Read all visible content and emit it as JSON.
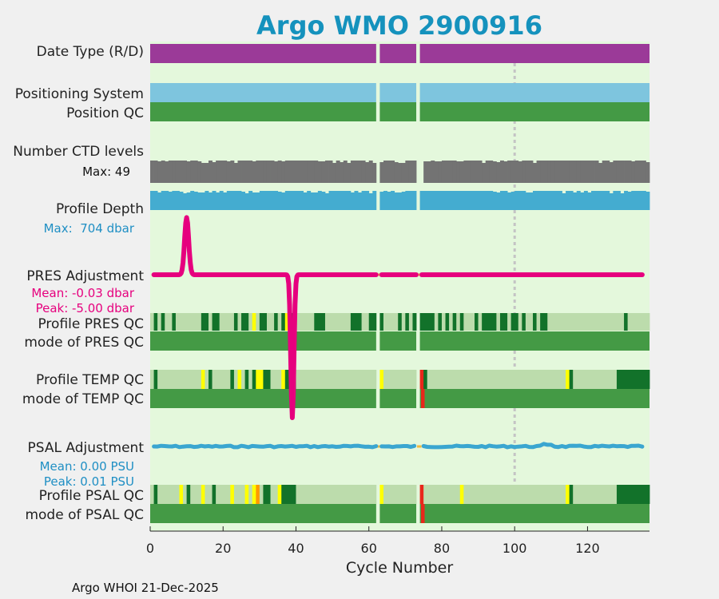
{
  "chart_data": {
    "type": "timeline",
    "title": "Argo WMO 2900916",
    "xlabel": "Cycle Number",
    "xlim": [
      0,
      137
    ],
    "xticks": [
      0,
      20,
      40,
      60,
      80,
      100,
      120
    ],
    "reference_cycle": 100,
    "gaps": [
      [
        62,
        63
      ],
      [
        73,
        74
      ]
    ],
    "ctd_gap": [
      74,
      75
    ],
    "rows": [
      {
        "key": "date_type",
        "label": "Date Type (R/D)"
      },
      {
        "key": "positioning_system",
        "label": "Positioning System"
      },
      {
        "key": "position_qc",
        "label": "Position QC"
      },
      {
        "key": "ctd_levels",
        "label": "Number CTD levels",
        "note": "Max: 49"
      },
      {
        "key": "profile_depth",
        "label": "Profile Depth",
        "note": "Max:  704 dbar"
      },
      {
        "key": "pres_adjustment",
        "label": "PRES Adjustment",
        "notes": [
          "Mean: -0.03 dbar",
          "Peak: -5.00 dbar"
        ]
      },
      {
        "key": "profile_pres_qc",
        "label": "Profile PRES QC"
      },
      {
        "key": "mode_pres_qc",
        "label": "mode of PRES QC"
      },
      {
        "key": "profile_temp_qc",
        "label": "Profile TEMP QC"
      },
      {
        "key": "mode_temp_qc",
        "label": "mode of TEMP QC"
      },
      {
        "key": "psal_adjustment",
        "label": "PSAL Adjustment",
        "notes": [
          "Mean: 0.00 PSU",
          "Peak: 0.01 PSU"
        ]
      },
      {
        "key": "profile_psal_qc",
        "label": "Profile PSAL QC"
      },
      {
        "key": "mode_psal_qc",
        "label": "mode of PSAL QC"
      }
    ],
    "pres_adjustment_spikes": [
      {
        "cycle": 10,
        "value": 2.0
      },
      {
        "cycle": 39,
        "value": -5.0
      }
    ],
    "pres_qc_light_cycles": [
      0,
      2,
      4,
      5,
      7,
      8,
      9,
      10,
      11,
      12,
      13,
      16,
      19,
      20,
      21,
      22,
      24,
      27,
      29,
      32,
      33,
      35,
      40,
      41,
      42,
      43,
      44,
      48,
      49,
      50,
      51,
      52,
      53,
      54,
      58,
      59,
      64,
      65,
      66,
      67,
      69,
      71,
      78,
      80,
      82,
      84,
      86,
      87,
      88,
      90,
      95,
      98,
      101,
      103,
      104,
      106,
      109,
      110,
      111,
      112,
      113,
      114,
      115,
      116,
      117,
      118,
      119,
      120,
      121,
      122,
      123,
      124,
      125,
      126,
      127,
      128,
      129,
      131,
      132,
      133,
      134,
      135,
      136
    ],
    "pres_qc_yellow_cycles": [
      28,
      37
    ],
    "temp_qc_light_cycles": [
      0,
      2,
      3,
      4,
      5,
      6,
      7,
      8,
      9,
      10,
      11,
      12,
      13,
      14,
      15,
      17,
      18,
      19,
      20,
      21,
      23,
      24,
      25,
      27,
      30,
      33,
      34,
      35,
      40,
      41,
      42,
      43,
      44,
      45,
      46,
      47,
      48,
      49,
      50,
      51,
      52,
      53,
      54,
      55,
      56,
      57,
      58,
      59,
      60,
      61,
      63,
      64,
      65,
      66,
      67,
      68,
      69,
      70,
      71,
      72,
      73,
      76,
      77,
      78,
      79,
      80,
      81,
      82,
      83,
      84,
      85,
      86,
      87,
      88,
      89,
      90,
      91,
      92,
      93,
      94,
      95,
      96,
      97,
      98,
      99,
      100,
      101,
      102,
      103,
      104,
      105,
      106,
      107,
      108,
      109,
      110,
      111,
      112,
      113,
      116,
      117,
      118,
      119,
      120,
      121,
      122,
      123,
      124,
      125,
      126,
      127
    ],
    "temp_qc_yellow_cycles": [
      14,
      24,
      29,
      30,
      36,
      63,
      114
    ],
    "temp_qc_red_cycles": [
      74
    ],
    "psal_qc_light_cycles": [
      0,
      2,
      3,
      4,
      5,
      6,
      7,
      8,
      9,
      11,
      12,
      13,
      15,
      16,
      18,
      19,
      20,
      21,
      23,
      24,
      25,
      27,
      30,
      33,
      34,
      35,
      40,
      41,
      42,
      43,
      44,
      45,
      46,
      47,
      48,
      49,
      50,
      51,
      52,
      53,
      54,
      55,
      56,
      57,
      58,
      59,
      60,
      61,
      63,
      64,
      65,
      66,
      67,
      68,
      69,
      70,
      71,
      72,
      73,
      75,
      76,
      77,
      78,
      79,
      80,
      81,
      82,
      83,
      84,
      85,
      86,
      87,
      88,
      89,
      90,
      91,
      92,
      93,
      94,
      95,
      96,
      97,
      98,
      99,
      100,
      101,
      102,
      103,
      104,
      105,
      106,
      107,
      108,
      109,
      110,
      111,
      112,
      113,
      116,
      117,
      118,
      119,
      120,
      121,
      122,
      123,
      124,
      125,
      126,
      127
    ],
    "psal_qc_yellow_cycles": [
      8,
      14,
      22,
      26,
      28,
      35,
      63,
      85,
      114
    ],
    "psal_qc_orange_cycles": [
      29
    ],
    "psal_qc_red_cycles": [
      74
    ],
    "colors": {
      "background": "#e4f8dc",
      "date_type": "#9b3a98",
      "positioning": "#7ec5de",
      "qc_good": "#449a45",
      "qc_dark": "#12722a",
      "qc_light": "#bcdcac",
      "ctd": "#737373",
      "depth": "#44acd0",
      "pres": "#e6007e",
      "psal": "#3aa6d0",
      "yellow": "#ffff00",
      "orange": "#ff9900",
      "red": "#e8271b",
      "gap_marker": "#f0b840",
      "pres_note": "#e6007e",
      "psal_note": "#1f8fc4",
      "depth_note": "#1f8fc4"
    }
  },
  "footer": "Argo WHOI 21-Dec-2025"
}
